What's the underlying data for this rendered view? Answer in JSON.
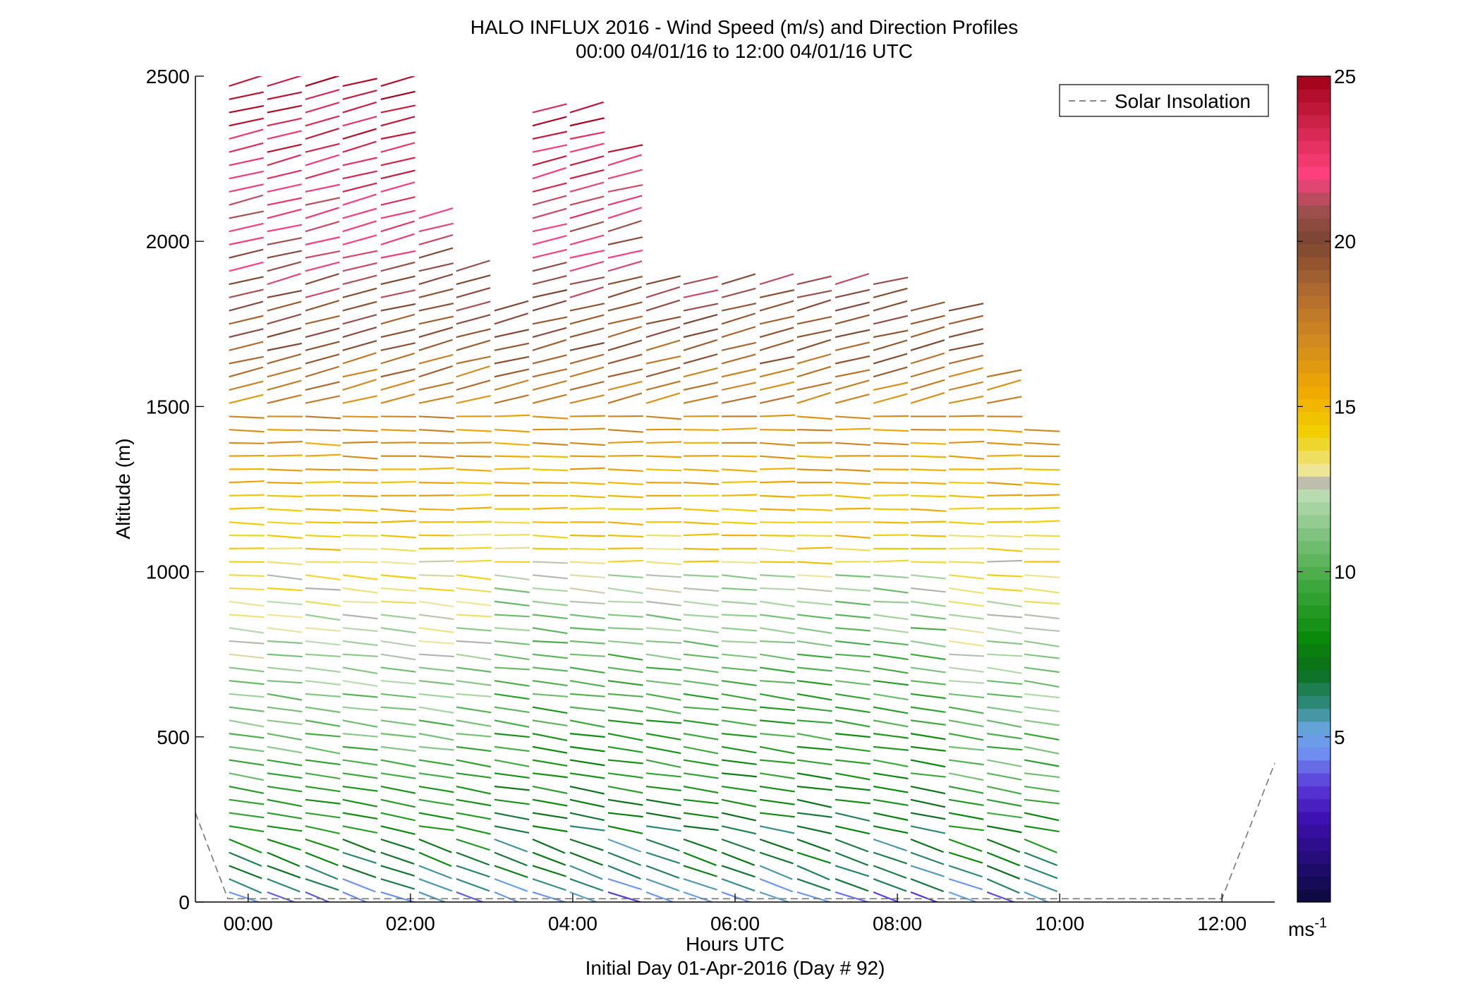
{
  "chart_data": {
    "type": "scatter",
    "plot_style": "wind-barb profile (colored direction sticks)",
    "title": "HALO INFLUX 2016 - Wind Speed (m/s) and Direction Profiles",
    "subtitle": "00:00 04/01/16 to 12:00 04/01/16  UTC",
    "xlabel": "Hours UTC",
    "xlabel2": "Initial Day 01-Apr-2016 (Day # 92)",
    "ylabel": "Altitude (m)",
    "xlim_hours": [
      -0.65,
      12.65
    ],
    "ylim": [
      0,
      2500
    ],
    "x_ticks": [
      {
        "v": 0,
        "label": "00:00"
      },
      {
        "v": 2,
        "label": "02:00"
      },
      {
        "v": 4,
        "label": "04:00"
      },
      {
        "v": 6,
        "label": "06:00"
      },
      {
        "v": 8,
        "label": "08:00"
      },
      {
        "v": 10,
        "label": "10:00"
      },
      {
        "v": 12,
        "label": "12:00"
      }
    ],
    "y_ticks": [
      {
        "v": 0,
        "label": "0"
      },
      {
        "v": 500,
        "label": "500"
      },
      {
        "v": 1000,
        "label": "1000"
      },
      {
        "v": 1500,
        "label": "1500"
      },
      {
        "v": 2000,
        "label": "2000"
      },
      {
        "v": 2500,
        "label": "2500"
      }
    ],
    "legend": {
      "label": "Solar Insolation",
      "style": "dashed",
      "color": "#777777",
      "placement": "top-right"
    },
    "colorbar": {
      "range": [
        0,
        25
      ],
      "ticks": [
        {
          "v": 5,
          "label": "5"
        },
        {
          "v": 10,
          "label": "10"
        },
        {
          "v": 15,
          "label": "15"
        },
        {
          "v": 20,
          "label": "20"
        },
        {
          "v": 25,
          "label": "25"
        }
      ],
      "unit_base": "ms",
      "unit_exp": "-1",
      "stops": [
        {
          "v": 0,
          "color": "#0a0a3a"
        },
        {
          "v": 2.5,
          "color": "#3d10b0"
        },
        {
          "v": 3.5,
          "color": "#5a38d8"
        },
        {
          "v": 4.5,
          "color": "#6f8ef0"
        },
        {
          "v": 5.2,
          "color": "#6aa6e0"
        },
        {
          "v": 6.0,
          "color": "#2e8a7a"
        },
        {
          "v": 7.0,
          "color": "#0a6e1a"
        },
        {
          "v": 8.0,
          "color": "#0a8a0a"
        },
        {
          "v": 9.5,
          "color": "#3aa63a"
        },
        {
          "v": 11.0,
          "color": "#7ac07a"
        },
        {
          "v": 12.3,
          "color": "#b8dcb0"
        },
        {
          "v": 12.6,
          "color": "#b0b0b0"
        },
        {
          "v": 13.0,
          "color": "#eee7a0"
        },
        {
          "v": 14.2,
          "color": "#f0d000"
        },
        {
          "v": 15.5,
          "color": "#f0a800"
        },
        {
          "v": 17.0,
          "color": "#d08a20"
        },
        {
          "v": 18.5,
          "color": "#b06a30"
        },
        {
          "v": 20.0,
          "color": "#7a4530"
        },
        {
          "v": 21.0,
          "color": "#a05050"
        },
        {
          "v": 22.0,
          "color": "#ff4080"
        },
        {
          "v": 23.0,
          "color": "#e0305e"
        },
        {
          "v": 24.0,
          "color": "#c01838"
        },
        {
          "v": 25.0,
          "color": "#a00018"
        }
      ]
    },
    "solar_insolation": [
      {
        "x": -0.65,
        "y": 270
      },
      {
        "x": -0.25,
        "y": 10
      },
      {
        "x": 12.0,
        "y": 10
      },
      {
        "x": 12.65,
        "y": 420
      }
    ],
    "profile_times_hours": [
      -0.27,
      0.2,
      0.67,
      1.13,
      1.6,
      2.07,
      2.53,
      3.0,
      3.47,
      3.93,
      4.4,
      4.87,
      5.33,
      5.8,
      6.27,
      6.73,
      7.2,
      7.67,
      8.13,
      8.6,
      9.07,
      9.53
    ],
    "profile_top_m": [
      2500,
      2500,
      2500,
      2500,
      2500,
      2100,
      1920,
      1800,
      2400,
      2400,
      2300,
      1900,
      1900,
      1900,
      1900,
      1900,
      1900,
      1900,
      1800,
      1800,
      1600,
      1450
    ],
    "range_gate_spacing_m": 40,
    "speed_profile_ms": [
      {
        "alt": 30,
        "ws": 4.5
      },
      {
        "alt": 80,
        "ws": 6.0
      },
      {
        "alt": 200,
        "ws": 8.0
      },
      {
        "alt": 400,
        "ws": 10.0
      },
      {
        "alt": 700,
        "ws": 11.5
      },
      {
        "alt": 1000,
        "ws": 13.5
      },
      {
        "alt": 1300,
        "ws": 15.5
      },
      {
        "alt": 1550,
        "ws": 17.5
      },
      {
        "alt": 1700,
        "ws": 19.5
      },
      {
        "alt": 2000,
        "ws": 21.5
      },
      {
        "alt": 2300,
        "ws": 23.5
      },
      {
        "alt": 2500,
        "ws": 24.5
      }
    ]
  }
}
